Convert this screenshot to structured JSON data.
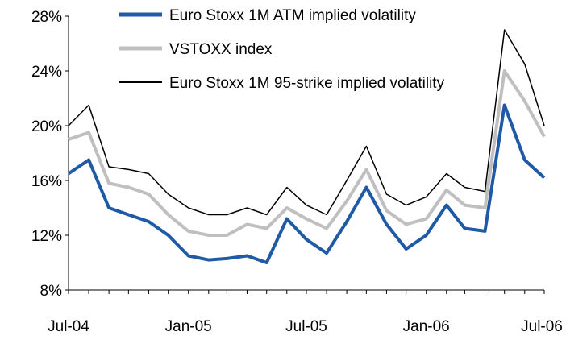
{
  "chart_data": {
    "type": "line",
    "title": "",
    "xlabel": "",
    "ylabel": "",
    "ylim": [
      8,
      28
    ],
    "yticks": [
      "8%",
      "12%",
      "16%",
      "20%",
      "24%",
      "28%"
    ],
    "xticks": [
      "Jul-04",
      "Jan-05",
      "Jul-05",
      "Jan-06",
      "Jul-06"
    ],
    "grid": false,
    "legend_position": "top",
    "series": [
      {
        "name": "Euro Stoxx 1M ATM implied volatility",
        "color": "#1f5aa6",
        "x": [
          "2004-07",
          "2004-08",
          "2004-09",
          "2004-10",
          "2004-11",
          "2004-12",
          "2005-01",
          "2005-02",
          "2005-03",
          "2005-04",
          "2005-05",
          "2005-06",
          "2005-07",
          "2005-08",
          "2005-09",
          "2005-10",
          "2005-11",
          "2005-12",
          "2006-01",
          "2006-02",
          "2006-03",
          "2006-04",
          "2006-05",
          "2006-06",
          "2006-07"
        ],
        "y": [
          16.5,
          17.5,
          14.0,
          13.5,
          13.0,
          12.0,
          10.5,
          10.2,
          10.3,
          10.5,
          10.0,
          13.2,
          11.7,
          10.7,
          13.0,
          15.5,
          12.8,
          11.0,
          12.0,
          14.2,
          12.5,
          12.3,
          21.5,
          17.5,
          16.2
        ]
      },
      {
        "name": "VSTOXX index",
        "color": "#bfbfbf",
        "x": [
          "2004-07",
          "2004-08",
          "2004-09",
          "2004-10",
          "2004-11",
          "2004-12",
          "2005-01",
          "2005-02",
          "2005-03",
          "2005-04",
          "2005-05",
          "2005-06",
          "2005-07",
          "2005-08",
          "2005-09",
          "2005-10",
          "2005-11",
          "2005-12",
          "2006-01",
          "2006-02",
          "2006-03",
          "2006-04",
          "2006-05",
          "2006-06",
          "2006-07"
        ],
        "y": [
          19.0,
          19.5,
          15.8,
          15.5,
          15.0,
          13.5,
          12.3,
          12.0,
          12.0,
          12.8,
          12.5,
          14.0,
          13.2,
          12.5,
          14.5,
          16.8,
          13.8,
          12.8,
          13.2,
          15.3,
          14.2,
          14.0,
          24.0,
          21.8,
          19.2
        ]
      },
      {
        "name": "Euro Stoxx 1M 95-strike implied volatility",
        "color": "#000000",
        "x": [
          "2004-07",
          "2004-08",
          "2004-09",
          "2004-10",
          "2004-11",
          "2004-12",
          "2005-01",
          "2005-02",
          "2005-03",
          "2005-04",
          "2005-05",
          "2005-06",
          "2005-07",
          "2005-08",
          "2005-09",
          "2005-10",
          "2005-11",
          "2005-12",
          "2006-01",
          "2006-02",
          "2006-03",
          "2006-04",
          "2006-05",
          "2006-06",
          "2006-07"
        ],
        "y": [
          20.0,
          21.5,
          17.0,
          16.8,
          16.5,
          15.0,
          14.0,
          13.5,
          13.5,
          14.0,
          13.5,
          15.5,
          14.2,
          13.5,
          16.0,
          18.5,
          15.0,
          14.2,
          14.8,
          16.5,
          15.5,
          15.2,
          27.0,
          24.5,
          20.0
        ]
      }
    ]
  }
}
